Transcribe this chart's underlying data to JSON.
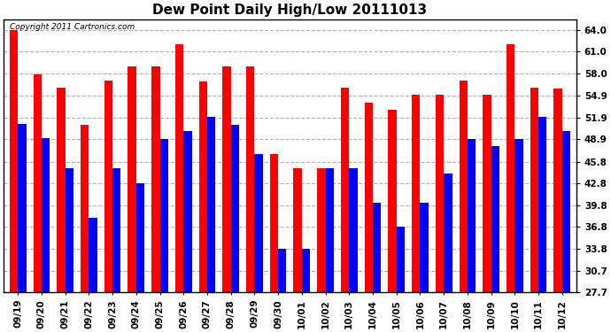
{
  "title": "Dew Point Daily High/Low 20111013",
  "copyright": "Copyright 2011 Cartronics.com",
  "categories": [
    "09/19",
    "09/20",
    "09/21",
    "09/22",
    "09/23",
    "09/24",
    "09/25",
    "09/26",
    "09/27",
    "09/28",
    "09/29",
    "09/30",
    "10/01",
    "10/02",
    "10/03",
    "10/04",
    "10/05",
    "10/06",
    "10/07",
    "10/08",
    "10/09",
    "10/10",
    "10/11",
    "10/12"
  ],
  "highs": [
    64.0,
    57.9,
    56.0,
    50.9,
    57.0,
    59.0,
    59.0,
    62.0,
    56.9,
    59.0,
    59.0,
    46.9,
    44.9,
    44.9,
    56.0,
    53.9,
    53.0,
    55.0,
    55.0,
    57.0,
    55.0,
    62.0,
    56.0,
    55.9
  ],
  "lows": [
    51.0,
    49.0,
    44.9,
    38.0,
    44.9,
    42.8,
    48.9,
    50.0,
    52.0,
    50.9,
    46.9,
    33.8,
    33.8,
    44.9,
    44.9,
    40.1,
    36.8,
    40.1,
    44.1,
    48.9,
    47.9,
    48.9,
    52.0,
    50.0
  ],
  "bar_high_color": "#ff0000",
  "bar_low_color": "#0000ff",
  "background_color": "#ffffff",
  "grid_color": "#b0b0b0",
  "yticks": [
    27.7,
    30.7,
    33.8,
    36.8,
    39.8,
    42.8,
    45.8,
    48.9,
    51.9,
    54.9,
    58.0,
    61.0,
    64.0
  ],
  "ymin": 27.7,
  "ymax": 65.5,
  "title_fontsize": 11,
  "tick_fontsize": 7.5,
  "copyright_fontsize": 6.5
}
